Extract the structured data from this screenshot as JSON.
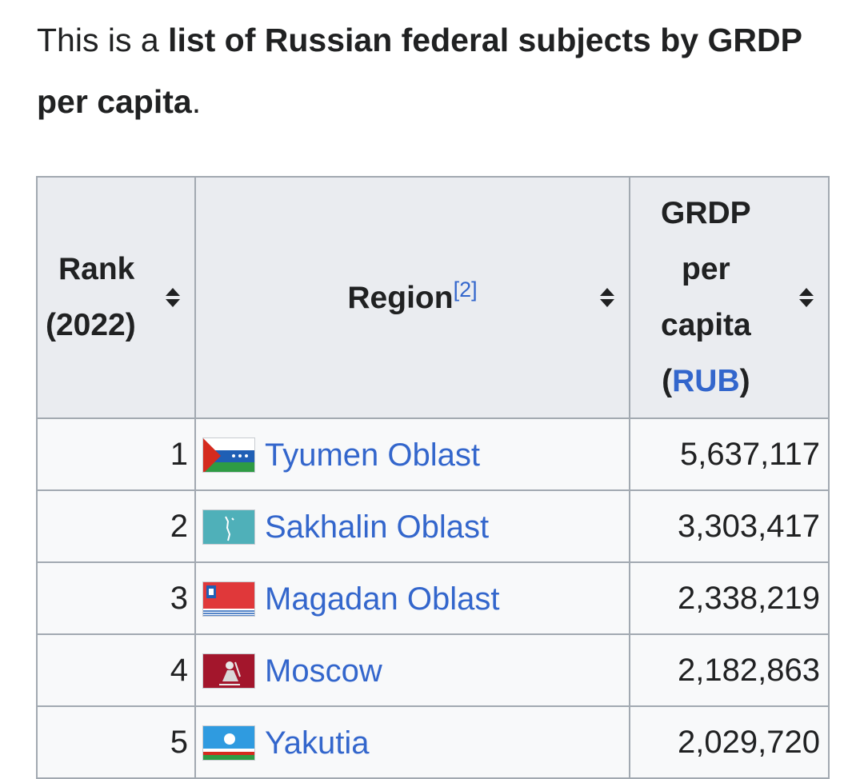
{
  "intro": {
    "prefix": "This is a ",
    "bold": "list of Russian federal subjects by GRDP per capita",
    "suffix": "."
  },
  "table": {
    "headers": {
      "rank": {
        "line1": "Rank",
        "line2": "(2022)"
      },
      "region": {
        "label": "Region",
        "ref": "[2]"
      },
      "grdp": {
        "line1": "GRDP",
        "line2": "per",
        "line3": "capita",
        "open": "(",
        "unit": "RUB",
        "close": ")"
      }
    },
    "rows": [
      {
        "rank": "1",
        "region": "Tyumen Oblast",
        "value": "5,637,117",
        "flag": "tyumen-flag-icon"
      },
      {
        "rank": "2",
        "region": "Sakhalin Oblast",
        "value": "3,303,417",
        "flag": "sakhalin-flag-icon"
      },
      {
        "rank": "3",
        "region": "Magadan Oblast",
        "value": "2,338,219",
        "flag": "magadan-flag-icon"
      },
      {
        "rank": "4",
        "region": "Moscow",
        "value": "2,182,863",
        "flag": "moscow-flag-icon"
      },
      {
        "rank": "5",
        "region": "Yakutia",
        "value": "2,029,720",
        "flag": "yakutia-flag-icon"
      }
    ]
  }
}
